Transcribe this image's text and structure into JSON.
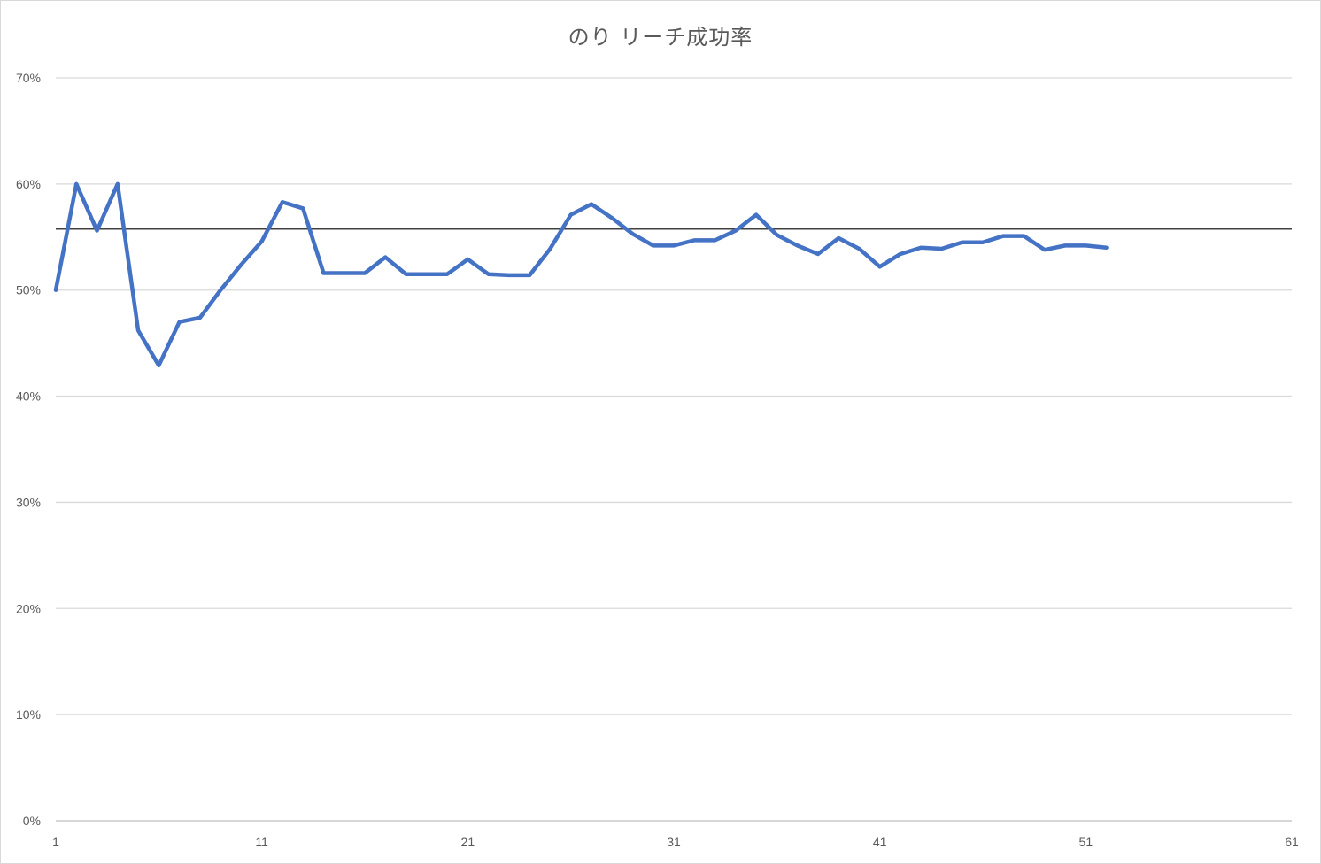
{
  "chart_data": {
    "type": "line",
    "title": "のり リーチ成功率",
    "xlabel": "",
    "ylabel": "",
    "xlim": [
      1,
      61
    ],
    "ylim": [
      0,
      0.7
    ],
    "x_ticks": [
      "1",
      "11",
      "21",
      "31",
      "41",
      "51",
      "61"
    ],
    "y_ticks": [
      "0%",
      "10%",
      "20%",
      "30%",
      "40%",
      "50%",
      "60%",
      "70%"
    ],
    "grid": true,
    "legend": "none",
    "series": [
      {
        "color": "#4472c4",
        "x": [
          1,
          2,
          3,
          4,
          5,
          6,
          7,
          8,
          9,
          10,
          11,
          12,
          13,
          14,
          15,
          16,
          17,
          18,
          19,
          20,
          21,
          22,
          23,
          24,
          25,
          26,
          27,
          28,
          29,
          30,
          31,
          32,
          33,
          34,
          35,
          36,
          37,
          38,
          39,
          40,
          41,
          42,
          43,
          44,
          45,
          46,
          47,
          48,
          49,
          50,
          51,
          52
        ],
        "y": [
          0.5,
          0.6,
          0.556,
          0.6,
          0.462,
          0.429,
          0.47,
          0.474,
          0.5,
          0.524,
          0.546,
          0.583,
          0.577,
          0.516,
          0.516,
          0.516,
          0.531,
          0.515,
          0.515,
          0.515,
          0.529,
          0.515,
          0.514,
          0.514,
          0.539,
          0.571,
          0.581,
          0.568,
          0.553,
          0.542,
          0.542,
          0.547,
          0.547,
          0.556,
          0.571,
          0.552,
          0.542,
          0.534,
          0.549,
          0.539,
          0.522,
          0.534,
          0.54,
          0.539,
          0.545,
          0.545,
          0.551,
          0.551,
          0.538,
          0.542,
          0.542,
          0.54
        ]
      },
      {
        "color": "#404040",
        "x": [
          1,
          61
        ],
        "y": [
          0.558,
          0.558
        ]
      }
    ]
  }
}
